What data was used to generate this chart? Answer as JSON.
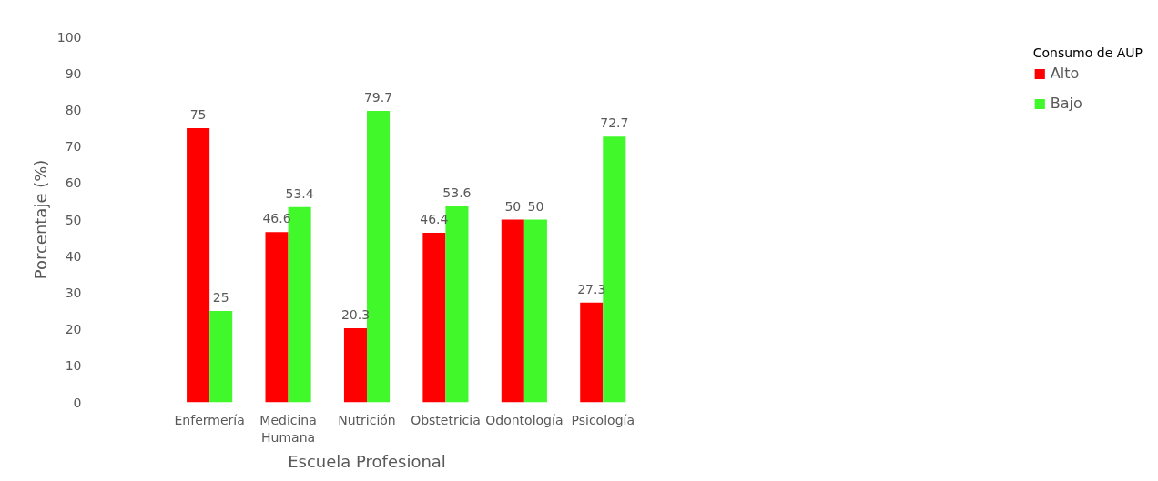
{
  "chart_data": {
    "type": "bar",
    "xlabel": "Escuela Profesional",
    "ylabel": "Porcentaje (%)",
    "legend_title": "Consumo de AUP",
    "categories": [
      null,
      "Enfermería",
      "Medicina Humana",
      "Nutrición",
      "Obstetricia",
      "Odontología",
      "Psicología"
    ],
    "series": [
      {
        "name": "Alto",
        "color": "#ff0000",
        "values": [
          null,
          75,
          46.6,
          20.3,
          46.4,
          50,
          27.3
        ]
      },
      {
        "name": "Bajo",
        "color": "#40f82a",
        "values": [
          null,
          25,
          53.4,
          79.7,
          53.6,
          50,
          72.7
        ]
      }
    ],
    "ylim": [
      0,
      100
    ],
    "yticks": [
      0,
      10,
      20,
      30,
      40,
      50,
      60,
      70,
      80,
      90,
      100
    ],
    "data_labels": true,
    "grid": false,
    "legend": "right"
  }
}
